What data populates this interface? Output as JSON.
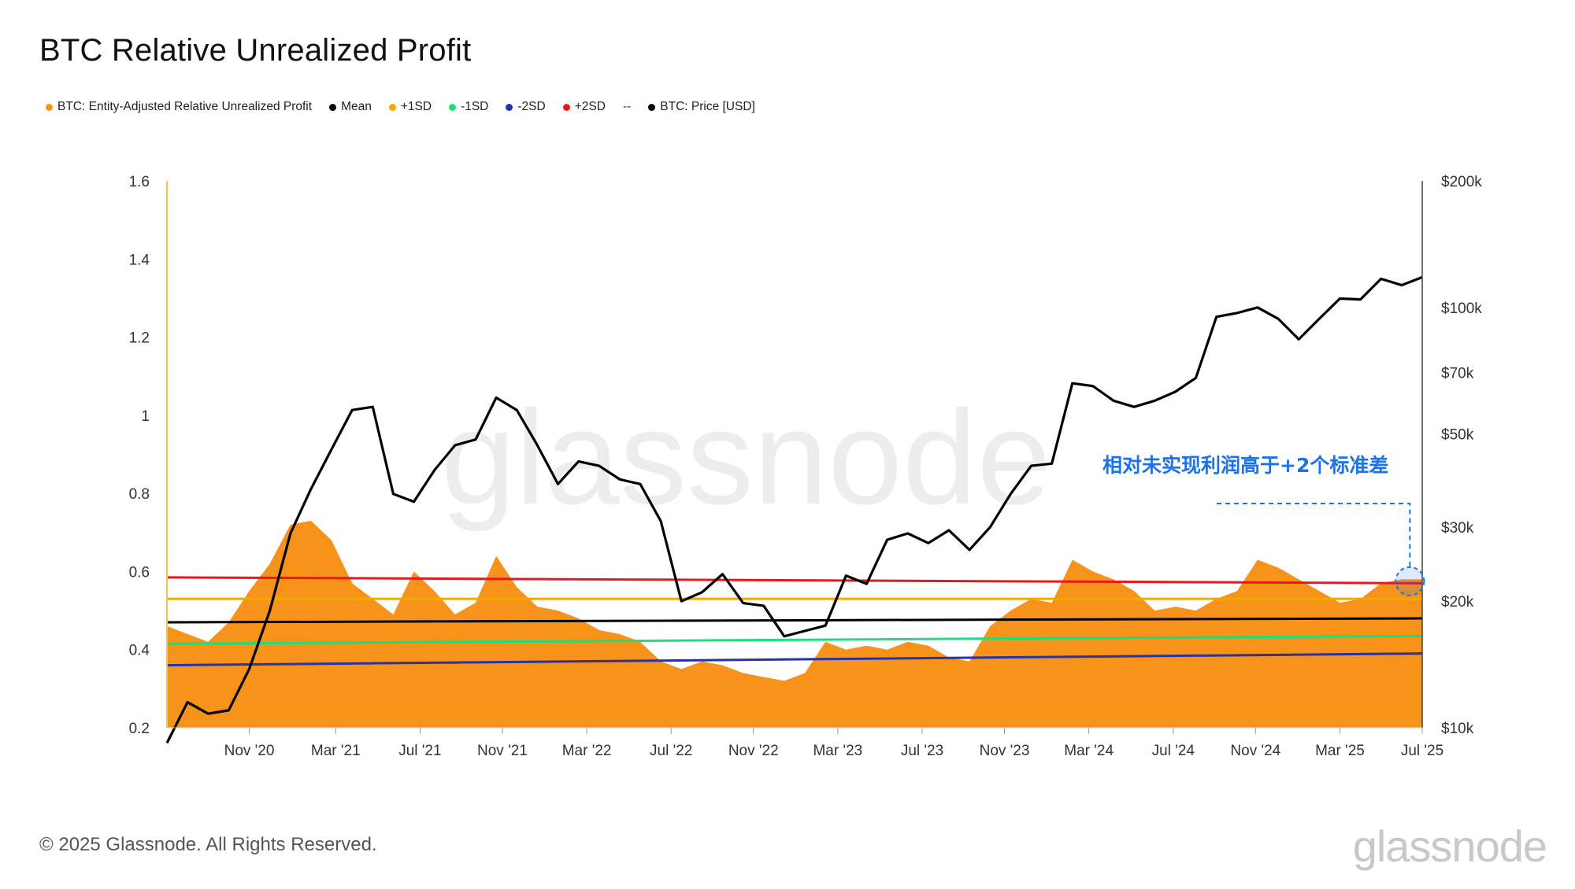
{
  "title": "BTC Relative Unrealized Profit",
  "legend": [
    {
      "label": "BTC: Entity-Adjusted Relative Unrealized Profit",
      "color": "#f7931a"
    },
    {
      "label": "Mean",
      "color": "#000000"
    },
    {
      "label": "+1SD",
      "color": "#f5a800"
    },
    {
      "label": "-1SD",
      "color": "#18e07a"
    },
    {
      "label": "-2SD",
      "color": "#2633a8"
    },
    {
      "label": "+2SD",
      "color": "#e8191e"
    },
    {
      "label": "--",
      "color": ""
    },
    {
      "label": "BTC: Price [USD]",
      "color": "#000000"
    }
  ],
  "footer": "© 2025 Glassnode. All Rights Reserved.",
  "brand": "glassnode",
  "watermark": "glassnode",
  "annotation": "相对未实现利润高于+2个标准差",
  "chart_data": {
    "type": "area",
    "title": "BTC Relative Unrealized Profit",
    "x_start": "2020-07",
    "x_end": "2025-08",
    "x_ticks": [
      "Nov '20",
      "Mar '21",
      "Jul '21",
      "Nov '21",
      "Mar '22",
      "Jul '22",
      "Nov '22",
      "Mar '23",
      "Jul '23",
      "Nov '23",
      "Mar '24",
      "Jul '24",
      "Nov '24",
      "Mar '25",
      "Jul '25"
    ],
    "y_left": {
      "min": 0.2,
      "max": 1.6,
      "ticks": [
        "0.2",
        "0.4",
        "0.6",
        "0.8",
        "1",
        "1.2",
        "1.4",
        "1.6"
      ]
    },
    "y_right": {
      "scale": "log",
      "min": 10000,
      "max": 200000,
      "ticks": [
        {
          "value": 10000,
          "label": "$10k"
        },
        {
          "value": 20000,
          "label": "$20k"
        },
        {
          "value": 30000,
          "label": "$30k"
        },
        {
          "value": 50000,
          "label": "$50k"
        },
        {
          "value": 70000,
          "label": "$70k"
        },
        {
          "value": 100000,
          "label": "$100k"
        },
        {
          "value": 200000,
          "label": "$200k"
        }
      ]
    },
    "series": [
      {
        "name": "BTC: Entity-Adjusted Relative Unrealized Profit",
        "color": "#f7931a",
        "type": "area",
        "x": [
          0,
          1,
          2,
          3,
          4,
          5,
          6,
          7,
          8,
          9,
          10,
          11,
          12,
          13,
          14,
          15,
          16,
          17,
          18,
          19,
          20,
          21,
          22,
          23,
          24,
          25,
          26,
          27,
          28,
          29,
          30,
          31,
          32,
          33,
          34,
          35,
          36,
          37,
          38,
          39,
          40,
          41,
          42,
          43,
          44,
          45,
          46,
          47,
          48,
          49,
          50,
          51,
          52,
          53,
          54,
          55,
          56,
          57,
          58,
          59,
          60,
          61
        ],
        "values": [
          0.46,
          0.44,
          0.42,
          0.47,
          0.55,
          0.62,
          0.72,
          0.73,
          0.68,
          0.57,
          0.53,
          0.49,
          0.6,
          0.55,
          0.49,
          0.52,
          0.64,
          0.56,
          0.51,
          0.5,
          0.48,
          0.45,
          0.44,
          0.42,
          0.37,
          0.35,
          0.37,
          0.36,
          0.34,
          0.33,
          0.32,
          0.34,
          0.42,
          0.4,
          0.41,
          0.4,
          0.42,
          0.41,
          0.38,
          0.37,
          0.46,
          0.5,
          0.53,
          0.52,
          0.63,
          0.6,
          0.58,
          0.55,
          0.5,
          0.51,
          0.5,
          0.53,
          0.55,
          0.63,
          0.61,
          0.58,
          0.55,
          0.52,
          0.53,
          0.57,
          0.58,
          0.58
        ]
      },
      {
        "name": "Mean",
        "color": "#000000",
        "type": "line",
        "x": [
          0,
          61
        ],
        "values": [
          0.47,
          0.48
        ]
      },
      {
        "name": "+1SD",
        "color": "#f5a800",
        "type": "line",
        "x": [
          0,
          61
        ],
        "values": [
          0.53,
          0.53
        ]
      },
      {
        "name": "-1SD",
        "color": "#18e07a",
        "type": "line",
        "x": [
          0,
          61
        ],
        "values": [
          0.415,
          0.435
        ]
      },
      {
        "name": "-2SD",
        "color": "#2633a8",
        "type": "line",
        "x": [
          0,
          61
        ],
        "values": [
          0.36,
          0.39
        ]
      },
      {
        "name": "+2SD",
        "color": "#e8191e",
        "type": "line",
        "x": [
          0,
          61
        ],
        "values": [
          0.585,
          0.57
        ]
      },
      {
        "name": "BTC: Price [USD]",
        "color": "#000000",
        "type": "line",
        "axis": "right",
        "x": [
          0,
          1,
          2,
          3,
          4,
          5,
          6,
          7,
          8,
          9,
          10,
          11,
          12,
          13,
          14,
          15,
          16,
          17,
          18,
          19,
          20,
          21,
          22,
          23,
          24,
          25,
          26,
          27,
          28,
          29,
          30,
          31,
          32,
          33,
          34,
          35,
          36,
          37,
          38,
          39,
          40,
          41,
          42,
          43,
          44,
          45,
          46,
          47,
          48,
          49,
          50,
          51,
          52,
          53,
          54,
          55,
          56,
          57,
          58,
          59,
          60,
          61
        ],
        "values": [
          9200,
          11500,
          10800,
          11000,
          13800,
          19000,
          29000,
          37000,
          46000,
          57000,
          58000,
          36000,
          34500,
          41000,
          47000,
          48500,
          61000,
          57000,
          47000,
          38000,
          43000,
          42000,
          39000,
          38000,
          31000,
          20000,
          21000,
          23200,
          19800,
          19500,
          16500,
          17000,
          17500,
          23000,
          22000,
          28000,
          29000,
          27500,
          29500,
          26500,
          30000,
          36000,
          42000,
          42500,
          66000,
          65000,
          60000,
          58000,
          60000,
          63000,
          68000,
          95000,
          97000,
          100000,
          94000,
          84000,
          94000,
          105000,
          104500,
          117000,
          113000,
          118000
        ]
      }
    ]
  }
}
